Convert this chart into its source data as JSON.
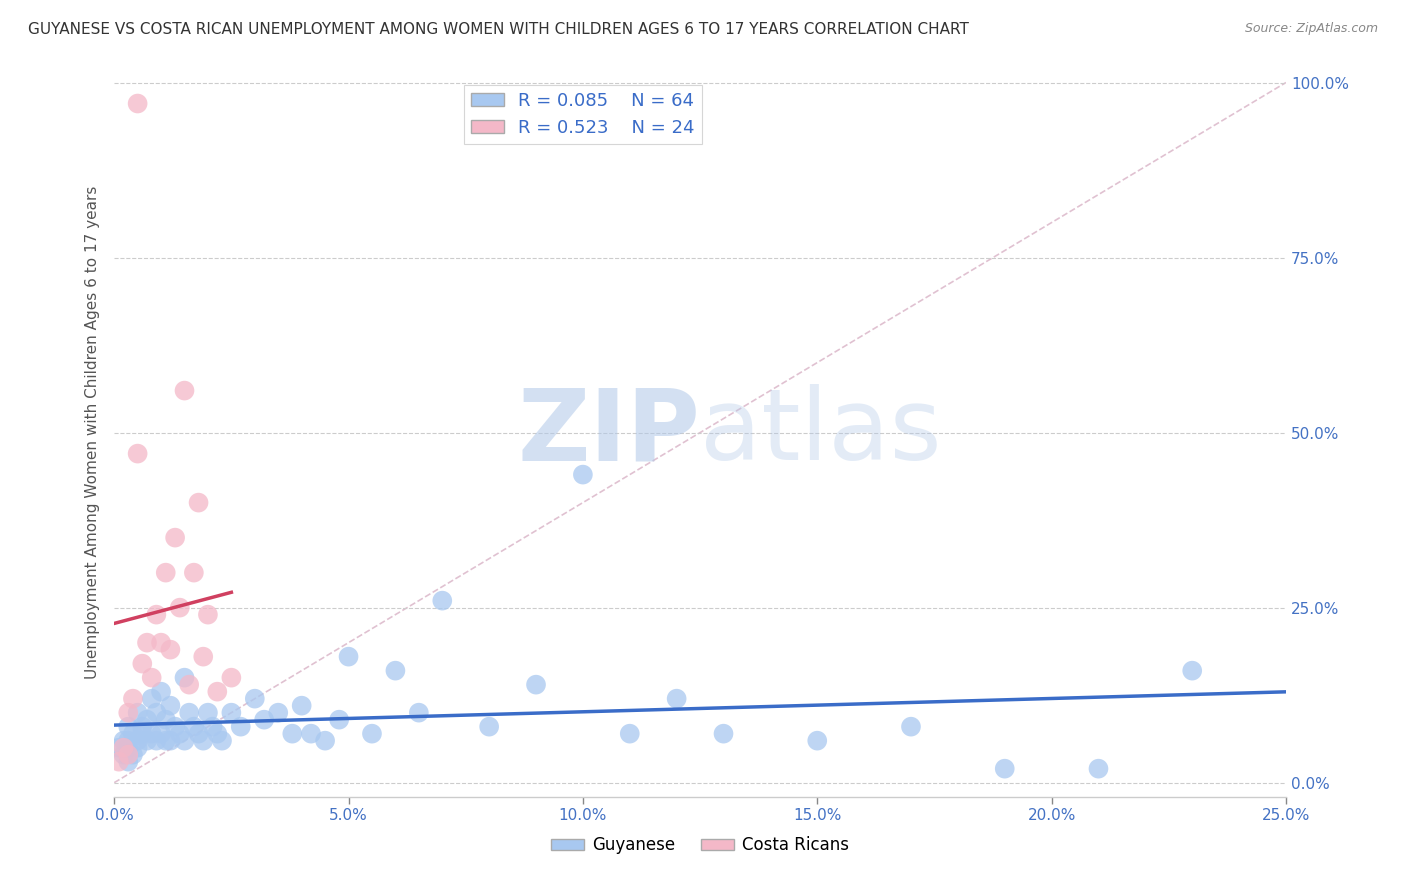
{
  "title": "GUYANESE VS COSTA RICAN UNEMPLOYMENT AMONG WOMEN WITH CHILDREN AGES 6 TO 17 YEARS CORRELATION CHART",
  "source": "Source: ZipAtlas.com",
  "ylabel": "Unemployment Among Women with Children Ages 6 to 17 years",
  "xlim": [
    0.0,
    0.25
  ],
  "ylim": [
    -0.02,
    1.02
  ],
  "xticks": [
    0.0,
    0.05,
    0.1,
    0.15,
    0.2,
    0.25
  ],
  "yticks": [
    0.0,
    0.25,
    0.5,
    0.75,
    1.0
  ],
  "xticklabels": [
    "0.0%",
    "5.0%",
    "10.0%",
    "15.0%",
    "20.0%",
    "25.0%"
  ],
  "yticklabels": [
    "0.0%",
    "25.0%",
    "50.0%",
    "75.0%",
    "100.0%"
  ],
  "legend_r": [
    0.085,
    0.523
  ],
  "legend_n": [
    64,
    24
  ],
  "guyanese_color": "#a8c8f0",
  "costa_rican_color": "#f4b8c8",
  "trend_guyanese_color": "#3a6cc8",
  "trend_costa_rican_color": "#d04060",
  "watermark_zip": "ZIP",
  "watermark_atlas": "atlas",
  "watermark_color": "#c8d8f0",
  "background_color": "#ffffff",
  "title_color": "#333333",
  "source_color": "#888888",
  "tick_color": "#4472c4",
  "ylabel_color": "#555555",
  "grid_color": "#cccccc",
  "diag_color": "#ddbbcc",
  "guyanese_x": [
    0.001,
    0.002,
    0.002,
    0.003,
    0.003,
    0.003,
    0.004,
    0.004,
    0.005,
    0.005,
    0.005,
    0.006,
    0.006,
    0.007,
    0.007,
    0.008,
    0.008,
    0.009,
    0.009,
    0.01,
    0.01,
    0.011,
    0.011,
    0.012,
    0.012,
    0.013,
    0.014,
    0.015,
    0.015,
    0.016,
    0.017,
    0.018,
    0.019,
    0.02,
    0.021,
    0.022,
    0.023,
    0.025,
    0.027,
    0.03,
    0.032,
    0.035,
    0.038,
    0.04,
    0.042,
    0.045,
    0.048,
    0.05,
    0.055,
    0.06,
    0.065,
    0.07,
    0.08,
    0.09,
    0.1,
    0.11,
    0.12,
    0.13,
    0.15,
    0.17,
    0.19,
    0.21,
    0.23,
    0.003
  ],
  "guyanese_y": [
    0.05,
    0.06,
    0.04,
    0.08,
    0.06,
    0.05,
    0.07,
    0.04,
    0.1,
    0.06,
    0.05,
    0.08,
    0.07,
    0.09,
    0.06,
    0.12,
    0.07,
    0.1,
    0.06,
    0.13,
    0.07,
    0.09,
    0.06,
    0.11,
    0.06,
    0.08,
    0.07,
    0.15,
    0.06,
    0.1,
    0.08,
    0.07,
    0.06,
    0.1,
    0.08,
    0.07,
    0.06,
    0.1,
    0.08,
    0.12,
    0.09,
    0.1,
    0.07,
    0.11,
    0.07,
    0.06,
    0.09,
    0.18,
    0.07,
    0.16,
    0.1,
    0.26,
    0.08,
    0.14,
    0.44,
    0.07,
    0.12,
    0.07,
    0.06,
    0.08,
    0.02,
    0.02,
    0.16,
    0.03
  ],
  "costa_rican_x": [
    0.001,
    0.002,
    0.003,
    0.003,
    0.004,
    0.005,
    0.006,
    0.007,
    0.008,
    0.009,
    0.01,
    0.011,
    0.012,
    0.013,
    0.014,
    0.015,
    0.016,
    0.017,
    0.018,
    0.019,
    0.02,
    0.022,
    0.025,
    0.005
  ],
  "costa_rican_y": [
    0.03,
    0.05,
    0.1,
    0.04,
    0.12,
    0.47,
    0.17,
    0.2,
    0.15,
    0.24,
    0.2,
    0.3,
    0.19,
    0.35,
    0.25,
    0.56,
    0.14,
    0.3,
    0.4,
    0.18,
    0.24,
    0.13,
    0.15,
    0.97
  ]
}
